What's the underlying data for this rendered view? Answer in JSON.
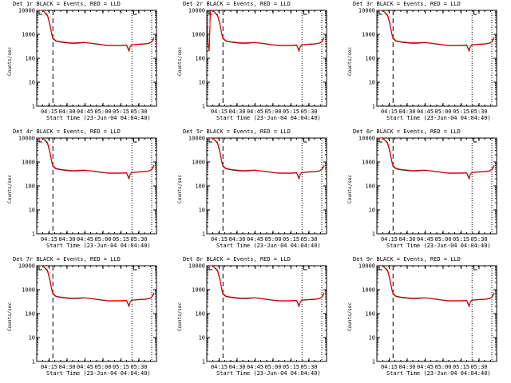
{
  "chart_data": {
    "type": "line",
    "common": {
      "xlabel": "Start Time (23-Jun-04 04:04:40)",
      "ylabel": "Counts/sec",
      "yscale": "log",
      "ylim": [
        1,
        10000
      ],
      "xlim_minutes": [
        0,
        100
      ],
      "ytick_labels": [
        "1",
        "10",
        "100",
        "1000",
        "10000"
      ],
      "ytick_values": [
        1,
        10,
        100,
        1000,
        10000
      ],
      "xtick_labels": [
        "04:15",
        "04:30",
        "04:45",
        "05:00",
        "05:15",
        "05:30"
      ],
      "xtick_values_minutes": [
        10.33,
        25.33,
        40.33,
        55.33,
        70.33,
        85.33
      ],
      "dashed_vline_minutes": 13.5,
      "dotted_vline_minutes": [
        79.5,
        96.0
      ],
      "series_colors": {
        "events": "#000000",
        "lld": "#ff0000"
      },
      "marker_minutes": 2.0,
      "marker2_minutes": 81.0
    },
    "charts": [
      {
        "title": "Det 1r BLACK = Events, RED = LLD",
        "x": [
          0,
          5,
          9,
          11,
          12.5,
          13.5,
          16,
          20,
          25,
          30,
          35,
          40,
          45,
          50,
          55,
          60,
          65,
          70,
          75,
          77,
          78,
          79,
          80,
          85,
          90,
          94,
          96,
          98
        ],
        "events": [
          10000,
          10000,
          6000,
          2500,
          1000,
          650,
          520,
          470,
          440,
          420,
          430,
          450,
          420,
          390,
          360,
          340,
          340,
          340,
          350,
          200,
          300,
          350,
          360,
          380,
          390,
          420,
          480,
          700
        ],
        "lld": [
          10000,
          10000,
          6500,
          2800,
          1100,
          700,
          540,
          490,
          460,
          440,
          450,
          460,
          430,
          400,
          370,
          350,
          350,
          350,
          360,
          220,
          310,
          360,
          370,
          390,
          400,
          430,
          500,
          750
        ]
      },
      {
        "title": "Det 2r BLACK = Events, RED = LLD",
        "x": [
          0,
          1,
          2,
          3,
          4,
          5,
          9,
          11,
          12.5,
          13.5,
          16,
          20,
          25,
          30,
          35,
          40,
          45,
          50,
          55,
          60,
          65,
          70,
          75,
          77,
          78,
          79,
          80,
          85,
          90,
          94,
          96,
          98
        ],
        "events": [
          9000,
          400,
          200,
          9000,
          10000,
          10000,
          6000,
          2500,
          1000,
          650,
          520,
          470,
          440,
          420,
          430,
          450,
          420,
          390,
          360,
          340,
          340,
          340,
          350,
          200,
          300,
          350,
          360,
          380,
          390,
          420,
          480,
          700
        ],
        "lld": [
          9500,
          420,
          220,
          9500,
          10000,
          10000,
          6500,
          2800,
          1100,
          700,
          540,
          490,
          460,
          440,
          450,
          460,
          430,
          400,
          370,
          350,
          350,
          350,
          360,
          220,
          310,
          360,
          370,
          390,
          400,
          430,
          500,
          750
        ]
      },
      {
        "title": "Det 3r BLACK = Events, RED = LLD",
        "x": [
          0,
          5,
          9,
          11,
          12.5,
          13.5,
          16,
          20,
          25,
          30,
          35,
          40,
          45,
          50,
          55,
          60,
          65,
          70,
          75,
          77,
          78,
          79,
          80,
          85,
          90,
          94,
          96,
          98
        ],
        "events": [
          10000,
          10000,
          6000,
          2500,
          1000,
          650,
          520,
          470,
          440,
          420,
          430,
          450,
          420,
          390,
          360,
          340,
          340,
          340,
          350,
          200,
          300,
          350,
          360,
          380,
          390,
          420,
          480,
          700
        ],
        "lld": [
          10000,
          10000,
          6500,
          2800,
          1100,
          700,
          540,
          490,
          460,
          440,
          450,
          460,
          430,
          400,
          370,
          350,
          350,
          350,
          360,
          220,
          310,
          360,
          370,
          390,
          400,
          430,
          500,
          750
        ]
      },
      {
        "title": "Det 4r BLACK = Events, RED = LLD",
        "x": [
          0,
          5,
          9,
          11,
          12.5,
          13.5,
          16,
          20,
          25,
          30,
          35,
          40,
          45,
          50,
          55,
          60,
          65,
          70,
          75,
          77,
          78,
          79,
          80,
          85,
          90,
          94,
          96,
          98
        ],
        "events": [
          10000,
          10000,
          6000,
          2500,
          1000,
          650,
          520,
          470,
          440,
          420,
          430,
          450,
          420,
          390,
          360,
          340,
          340,
          340,
          350,
          200,
          300,
          350,
          360,
          380,
          390,
          420,
          480,
          700
        ],
        "lld": [
          10000,
          10000,
          6500,
          2800,
          1100,
          700,
          540,
          490,
          460,
          440,
          450,
          460,
          430,
          400,
          370,
          350,
          350,
          350,
          360,
          220,
          310,
          360,
          370,
          390,
          400,
          430,
          500,
          750
        ]
      },
      {
        "title": "Det 5r BLACK = Events, RED = LLD",
        "x": [
          0,
          5,
          9,
          11,
          12.5,
          13.5,
          16,
          20,
          25,
          30,
          35,
          40,
          45,
          50,
          55,
          60,
          65,
          70,
          75,
          77,
          78,
          79,
          80,
          85,
          90,
          94,
          96,
          98
        ],
        "events": [
          10000,
          10000,
          6000,
          2500,
          1000,
          650,
          520,
          470,
          440,
          420,
          430,
          450,
          420,
          390,
          360,
          340,
          340,
          340,
          350,
          200,
          300,
          350,
          360,
          380,
          390,
          420,
          480,
          700
        ],
        "lld": [
          10000,
          10000,
          6500,
          2800,
          1100,
          700,
          540,
          490,
          460,
          440,
          450,
          460,
          430,
          400,
          370,
          350,
          350,
          350,
          360,
          220,
          310,
          360,
          370,
          390,
          400,
          430,
          500,
          750
        ]
      },
      {
        "title": "Det 6r BLACK = Events, RED = LLD",
        "x": [
          0,
          5,
          9,
          11,
          12.5,
          13.5,
          16,
          20,
          25,
          30,
          35,
          40,
          45,
          50,
          55,
          60,
          65,
          70,
          75,
          77,
          78,
          79,
          80,
          85,
          90,
          94,
          96,
          98
        ],
        "events": [
          10000,
          10000,
          6000,
          2500,
          1000,
          650,
          520,
          470,
          440,
          420,
          430,
          450,
          420,
          390,
          360,
          340,
          340,
          340,
          350,
          200,
          300,
          350,
          360,
          380,
          390,
          420,
          480,
          700
        ],
        "lld": [
          10000,
          10000,
          6500,
          2800,
          1100,
          700,
          540,
          490,
          460,
          440,
          450,
          460,
          430,
          400,
          370,
          350,
          350,
          350,
          360,
          220,
          310,
          360,
          370,
          390,
          400,
          430,
          500,
          750
        ]
      },
      {
        "title": "Det 7r BLACK = Events, RED = LLD",
        "x": [
          0,
          5,
          9,
          11,
          12.5,
          13.5,
          16,
          20,
          25,
          30,
          35,
          40,
          45,
          50,
          55,
          60,
          65,
          70,
          75,
          77,
          78,
          79,
          80,
          85,
          90,
          94,
          96,
          98
        ],
        "events": [
          10000,
          10000,
          6000,
          2500,
          1000,
          650,
          520,
          470,
          440,
          420,
          430,
          450,
          420,
          390,
          360,
          340,
          340,
          340,
          350,
          200,
          300,
          350,
          360,
          380,
          390,
          420,
          480,
          700
        ],
        "lld": [
          10000,
          10000,
          6500,
          2800,
          1100,
          700,
          540,
          490,
          460,
          440,
          450,
          460,
          430,
          400,
          370,
          350,
          350,
          350,
          360,
          220,
          310,
          360,
          370,
          390,
          400,
          430,
          500,
          750
        ]
      },
      {
        "title": "Det 8r BLACK = Events, RED = LLD",
        "x": [
          0,
          5,
          9,
          11,
          12.5,
          13.5,
          16,
          20,
          25,
          30,
          35,
          40,
          45,
          50,
          55,
          60,
          65,
          70,
          75,
          77,
          78,
          79,
          80,
          85,
          90,
          94,
          96,
          98
        ],
        "events": [
          10000,
          10000,
          6000,
          2500,
          1000,
          650,
          520,
          470,
          440,
          420,
          430,
          450,
          420,
          390,
          360,
          340,
          340,
          340,
          350,
          200,
          300,
          350,
          360,
          380,
          390,
          420,
          480,
          700
        ],
        "lld": [
          10000,
          10000,
          6500,
          2800,
          1100,
          700,
          540,
          490,
          460,
          440,
          450,
          460,
          430,
          400,
          370,
          350,
          350,
          350,
          360,
          220,
          310,
          360,
          370,
          390,
          400,
          430,
          500,
          750
        ]
      },
      {
        "title": "Det 9r BLACK = Events, RED = LLD",
        "x": [
          0,
          5,
          9,
          11,
          12.5,
          13.5,
          16,
          20,
          25,
          30,
          35,
          40,
          45,
          50,
          55,
          60,
          65,
          70,
          75,
          77,
          78,
          79,
          80,
          85,
          90,
          94,
          96,
          98
        ],
        "events": [
          10000,
          10000,
          6000,
          2500,
          1000,
          650,
          520,
          470,
          440,
          420,
          430,
          450,
          420,
          390,
          360,
          340,
          340,
          340,
          350,
          200,
          300,
          350,
          360,
          380,
          390,
          420,
          480,
          700
        ],
        "lld": [
          10000,
          10000,
          6500,
          2800,
          1100,
          700,
          540,
          490,
          460,
          440,
          450,
          460,
          430,
          400,
          370,
          350,
          350,
          350,
          360,
          220,
          310,
          360,
          370,
          390,
          400,
          430,
          500,
          750
        ]
      }
    ]
  }
}
